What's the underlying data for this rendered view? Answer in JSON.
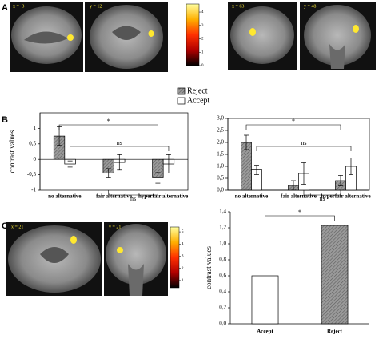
{
  "panels": [
    "A",
    "B",
    "C"
  ],
  "images": [
    {
      "label": "x = -3"
    },
    {
      "label": "y = 12"
    },
    {
      "label": "x = 63"
    },
    {
      "label": "y = 48"
    },
    {
      "label": "x = 21"
    },
    {
      "label": "y = 21"
    }
  ],
  "colorbars": [
    {
      "ticks": [
        0,
        1,
        2,
        3,
        4
      ],
      "lim": [
        0,
        4.6
      ]
    },
    {
      "ticks": [
        1,
        2,
        3,
        4,
        5
      ],
      "lim": [
        0.4,
        5.4
      ]
    }
  ],
  "chart_data": [
    {
      "type": "bar",
      "y_label": "contrast values",
      "categories": [
        "no alternative",
        "fair alternative",
        "hyperfair alternative"
      ],
      "series": [
        {
          "name": "Reject",
          "color": "#8c8c8c",
          "values": [
            0.75,
            -0.45,
            -0.6
          ],
          "errors": [
            0.3,
            0.15,
            0.17
          ]
        },
        {
          "name": "Accept",
          "color": "#ffffff",
          "values": [
            -0.15,
            -0.1,
            -0.15
          ],
          "errors": [
            0.1,
            0.25,
            0.3
          ]
        }
      ],
      "ylim": [
        -1,
        1.5
      ],
      "yticks": [
        -1,
        {
          "value": -0.5,
          "label": "-0,5"
        },
        0,
        {
          "value": 0.5,
          "label": "0,5"
        },
        1
      ],
      "annotations": [
        "*",
        "ns",
        "ns"
      ]
    },
    {
      "type": "bar",
      "categories": [
        "no alternative",
        "fair alternative",
        "hyperfair alternative"
      ],
      "series": [
        {
          "name": "Reject",
          "color": "#8c8c8c",
          "values": [
            2.0,
            0.2,
            0.4
          ],
          "errors": [
            0.3,
            0.2,
            0.22
          ]
        },
        {
          "name": "Accept",
          "color": "#ffffff",
          "values": [
            0.85,
            0.7,
            1.0
          ],
          "errors": [
            0.2,
            0.45,
            0.35
          ]
        }
      ],
      "ylim": [
        0,
        3
      ],
      "yticks": [
        {
          "value": 0,
          "label": "0,0"
        },
        {
          "value": 0.5,
          "label": "0,5"
        },
        {
          "value": 1,
          "label": "1,0"
        },
        {
          "value": 1.5,
          "label": "1,5"
        },
        {
          "value": 2,
          "label": "2,0"
        },
        {
          "value": 2.5,
          "label": "2,5"
        },
        {
          "value": 3,
          "label": "3,0"
        }
      ],
      "annotations": [
        "*",
        "ns",
        "ns"
      ]
    },
    {
      "type": "bar",
      "y_label": "contrast values",
      "categories": [
        "Accept",
        "Reject"
      ],
      "series": [
        {
          "colors": [
            "#ffffff",
            "#8c8c8c"
          ],
          "values": [
            0.6,
            1.23
          ]
        }
      ],
      "ylim": [
        0,
        1.4
      ],
      "yticks": [
        {
          "value": 0,
          "label": "0,0"
        },
        {
          "value": 0.2,
          "label": "0,2"
        },
        {
          "value": 0.4,
          "label": "0,4"
        },
        {
          "value": 0.6,
          "label": "0,6"
        },
        {
          "value": 0.8,
          "label": "0,8"
        },
        {
          "value": 1,
          "label": "1,0"
        },
        {
          "value": 1.2,
          "label": "1,2"
        },
        {
          "value": 1.4,
          "label": "1,4"
        }
      ],
      "annotations": [
        "*"
      ]
    }
  ]
}
